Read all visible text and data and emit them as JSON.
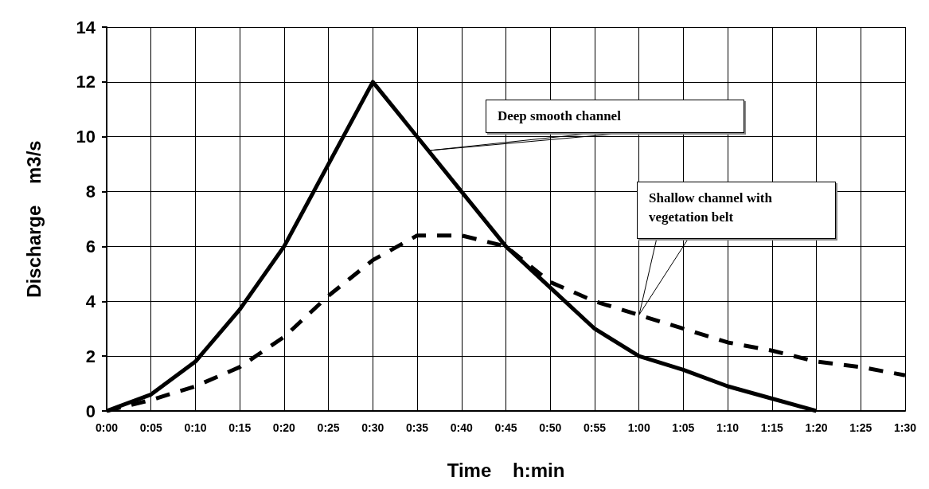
{
  "chart_data": {
    "type": "line",
    "xlabel": "Time    h:min",
    "ylabel": "Discharge    m3/s",
    "categories": [
      "0:00",
      "0:05",
      "0:10",
      "0:15",
      "0:20",
      "0:25",
      "0:30",
      "0:35",
      "0:40",
      "0:45",
      "0:50",
      "0:55",
      "1:00",
      "1:05",
      "1:10",
      "1:15",
      "1:20",
      "1:25",
      "1:30"
    ],
    "series": [
      {
        "color": "#000000",
        "line_style": "solid",
        "values": [
          0,
          0.6,
          1.8,
          3.7,
          6,
          9,
          12,
          10,
          8,
          6,
          4.5,
          3,
          2,
          1.5,
          0.9,
          0.45,
          0,
          null,
          null
        ]
      },
      {
        "color": "#000000",
        "line_style": "dashed",
        "values": [
          0,
          0.4,
          0.9,
          1.6,
          2.7,
          4.2,
          5.5,
          6.4,
          6.4,
          6,
          4.7,
          4,
          3.5,
          3,
          2.5,
          2.2,
          1.8,
          1.6,
          1.3
        ]
      }
    ],
    "annotations": [
      "Deep smooth channel",
      "Shallow channel with vegetation belt"
    ],
    "ylim": [
      0,
      14
    ],
    "yticks": [
      0,
      2,
      4,
      6,
      8,
      10,
      12,
      14
    ],
    "grid": true,
    "marker": "none"
  }
}
